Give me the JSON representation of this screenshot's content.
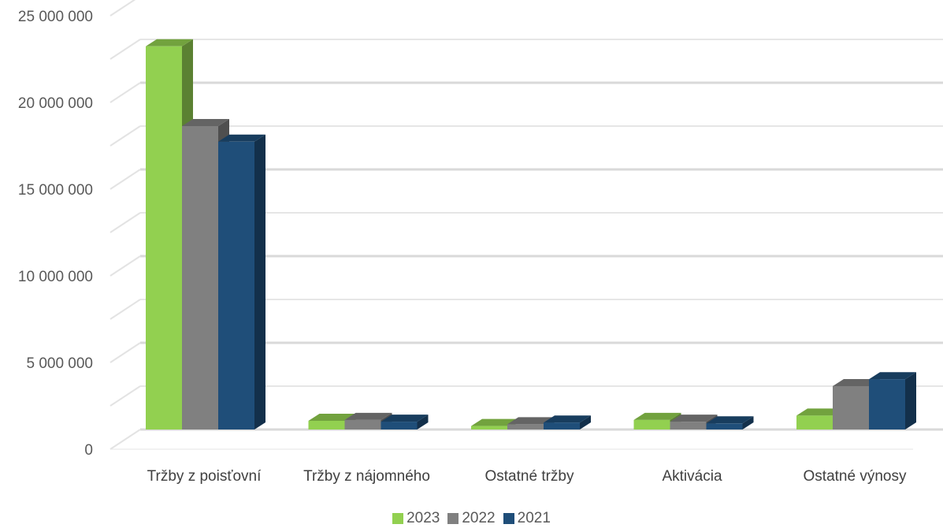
{
  "chart_data": {
    "type": "bar",
    "title": "",
    "xlabel": "",
    "ylabel": "",
    "ylim": [
      0,
      25000000
    ],
    "y_ticks": [
      {
        "value": 0,
        "label": "0"
      },
      {
        "value": 5000000,
        "label": "5 000 000"
      },
      {
        "value": 10000000,
        "label": "10 000 000"
      },
      {
        "value": 15000000,
        "label": "15 000 000"
      },
      {
        "value": 20000000,
        "label": "20 000 000"
      },
      {
        "value": 25000000,
        "label": "25 000 000"
      }
    ],
    "grid": true,
    "style": "3d-clustered-column",
    "legend_position": "bottom",
    "categories": [
      "Tržby z poisťovní",
      "Tržby z nájomného",
      "Ostatné tržby",
      "Aktivácia",
      "Ostatné výnosy"
    ],
    "series": [
      {
        "name": "2023",
        "color": "#92d050",
        "values": [
          22100000,
          500000,
          200000,
          550000,
          800000
        ]
      },
      {
        "name": "2022",
        "color": "#808080",
        "values": [
          17500000,
          550000,
          300000,
          450000,
          2500000
        ]
      },
      {
        "name": "2021",
        "color": "#1f4e79",
        "values": [
          16600000,
          450000,
          400000,
          350000,
          2900000
        ]
      }
    ]
  }
}
